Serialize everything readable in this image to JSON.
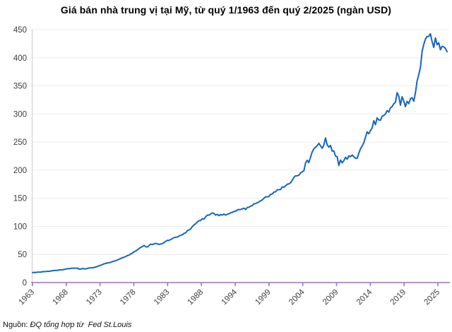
{
  "chart_data": {
    "type": "line",
    "title": "Giá bán nhà trung vị tại Mỹ, từ quý 1/1963 đến quý 2/2025 (ngàn USD)",
    "series_name": "Giá bán nhà trung vị tại Mỹ (ngàn USD)",
    "x_start_year": 1963,
    "x_step_years": 0.25,
    "x_tick_labels": [
      "1963",
      "1968",
      "1973",
      "1978",
      "1983",
      "1988",
      "1994",
      "1999",
      "2004",
      "2009",
      "2014",
      "2019",
      "2025"
    ],
    "y_ticks": [
      0,
      50,
      100,
      150,
      200,
      250,
      300,
      350,
      400,
      450
    ],
    "ylim": [
      0,
      450
    ],
    "grid": "horizontal",
    "legend": "none",
    "line_color": "#1565c0",
    "axis_color": "#9673c2",
    "grid_color": "#ececec",
    "spine_color": "#c9c9c9",
    "tick_label_color": "#3c3c3c",
    "values": [
      17.8,
      18.0,
      17.9,
      18.5,
      18.5,
      18.6,
      19.3,
      19.5,
      19.6,
      20.0,
      20.0,
      20.6,
      21.0,
      21.4,
      21.7,
      21.7,
      22.4,
      22.4,
      22.7,
      23.4,
      23.9,
      24.7,
      24.7,
      25.1,
      25.6,
      25.6,
      25.6,
      25.6,
      23.9,
      23.9,
      25.2,
      24.3,
      24.3,
      25.2,
      25.9,
      26.2,
      26.2,
      27.0,
      27.6,
      28.5,
      29.9,
      30.6,
      32.1,
      33.2,
      34.1,
      34.9,
      35.4,
      36.0,
      37.3,
      38.1,
      38.9,
      40.1,
      41.5,
      42.8,
      44.2,
      45.1,
      46.3,
      48.1,
      48.8,
      51.0,
      52.4,
      54.7,
      56.3,
      58.1,
      60.5,
      62.5,
      64.0,
      66.0,
      63.7,
      63.3,
      65.9,
      68.4,
      67.6,
      68.7,
      69.7,
      68.9,
      67.8,
      68.7,
      69.2,
      71.0,
      73.3,
      75.1,
      74.9,
      76.6,
      78.2,
      79.9,
      80.6,
      81.1,
      82.8,
      84.1,
      84.9,
      87.5,
      88.4,
      92.3,
      93.5,
      95.5,
      99.5,
      102.7,
      104.5,
      107.9,
      110.0,
      110.5,
      113.5,
      113.0,
      117.0,
      120.0,
      119.9,
      122.0,
      123.9,
      122.9,
      120.0,
      121.5,
      119.0,
      121.0,
      120.0,
      122.0,
      120.0,
      121.5,
      122.5,
      124.0,
      125.0,
      126.5,
      127.0,
      129.0,
      130.0,
      130.0,
      131.0,
      132.5,
      130.0,
      133.5,
      134.0,
      136.0,
      137.0,
      140.0,
      140.5,
      142.0,
      143.5,
      145.5,
      147.0,
      150.0,
      152.5,
      152.5,
      153.0,
      157.0,
      157.5,
      161.0,
      161.5,
      165.0,
      165.3,
      165.5,
      170.0,
      169.8,
      172.0,
      175.0,
      175.5,
      177.5,
      182.0,
      187.0,
      190.0,
      190.0,
      191.0,
      195.0,
      197.0,
      198.8,
      212.7,
      217.6,
      213.5,
      223.1,
      232.5,
      237.9,
      240.9,
      243.6,
      247.7,
      243.2,
      239.0,
      244.7,
      257.4,
      245.0,
      241.0,
      244.0,
      233.9,
      234.3,
      225.0,
      224.0,
      208.4,
      218.0,
      213.0,
      216.9,
      222.9,
      219.5,
      225.5,
      224.0,
      226.9,
      224.0,
      221.2,
      221.0,
      230.0,
      238.0,
      243.0,
      249.0,
      258.4,
      268.1,
      264.8,
      270.2,
      275.2,
      288.0,
      281.0,
      293.0,
      289.2,
      289.0,
      295.8,
      297.5,
      299.8,
      306.0,
      303.3,
      310.9,
      313.1,
      318.2,
      320.5,
      337.9,
      331.8,
      315.6,
      330.6,
      322.8,
      313.0,
      322.5,
      318.4,
      327.1,
      329.0,
      322.6,
      337.5,
      358.7,
      369.8,
      382.6,
      411.2,
      423.6,
      433.1,
      437.7,
      438.0,
      442.6,
      429.0,
      418.5,
      435.3,
      423.2,
      426.8,
      414.2,
      420.4,
      419.2,
      416.9,
      410.8
    ]
  },
  "source": {
    "prefix": "Nguồn: ",
    "text": "ĐQ tổng hợp từ  Fed St.Louis"
  }
}
